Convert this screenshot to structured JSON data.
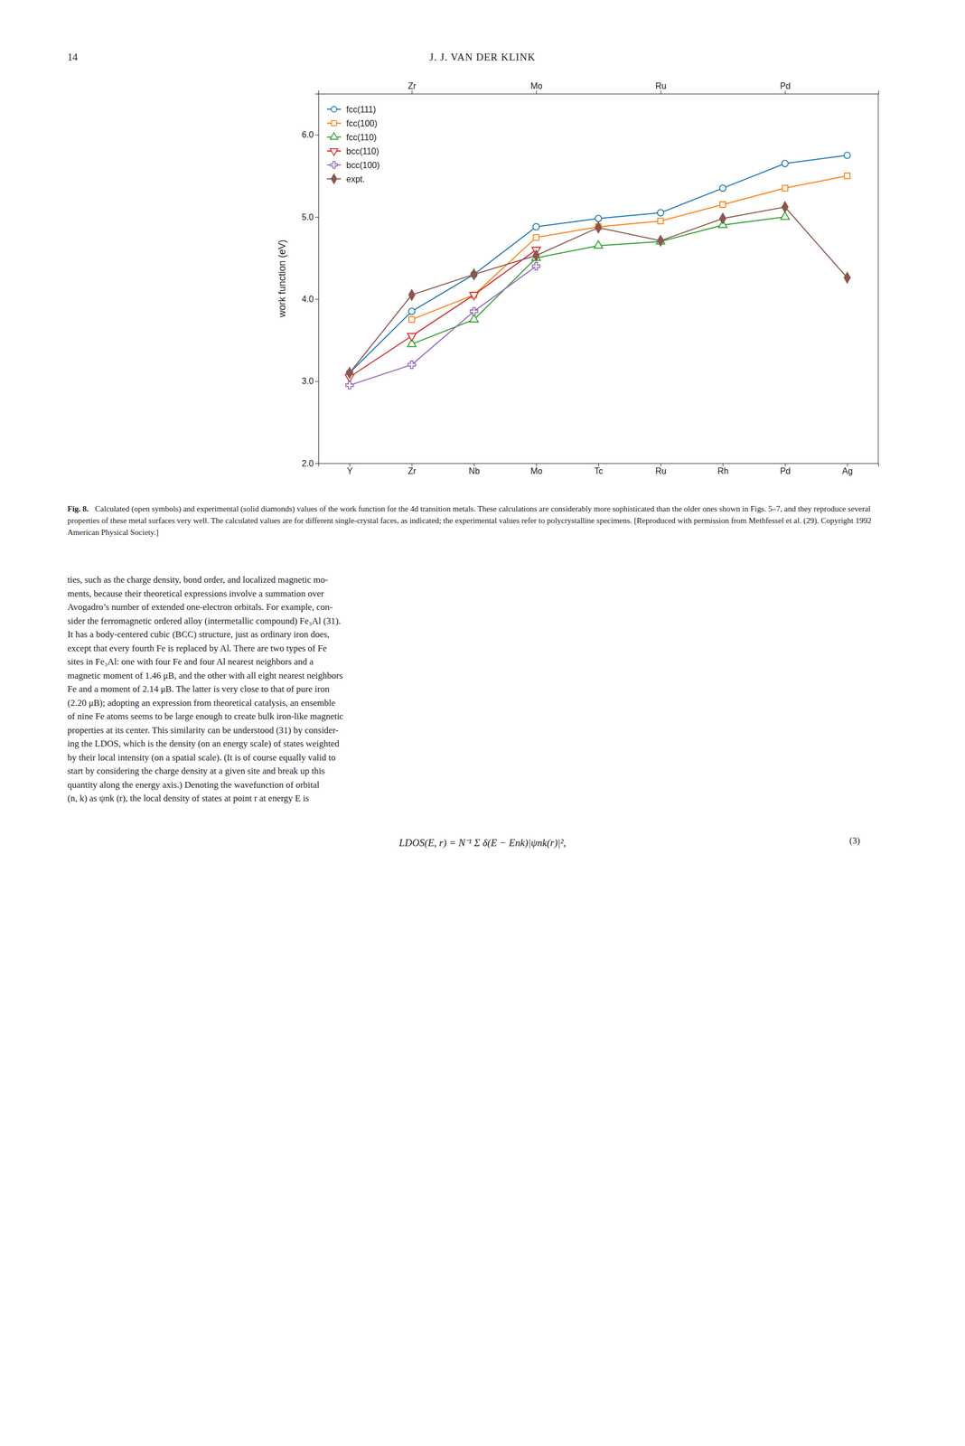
{
  "page_number": "14",
  "header": "J. J. VAN DER KLINK",
  "chart_data": {
    "type": "line",
    "ylabel": "work function (eV)",
    "categories": [
      "Y",
      "Zr",
      "Nb",
      "Mo",
      "Tc",
      "Ru",
      "Rh",
      "Pd",
      "Ag"
    ],
    "x2_categories": [
      null,
      "Zr",
      null,
      "Mo",
      null,
      "Ru",
      null,
      "Pd",
      null
    ],
    "ylim": [
      2.0,
      6.5
    ],
    "yticks": [
      {
        "value": 2.0,
        "label": "2.0"
      },
      {
        "value": 3.0,
        "label": "3.0"
      },
      {
        "value": 4.0,
        "label": "4.0"
      },
      {
        "value": 5.0,
        "label": "5.0"
      },
      {
        "value": 6.0,
        "label": "6.0"
      }
    ],
    "grid": false,
    "legend": "upper left",
    "series": [
      {
        "name": "fcc(111)",
        "marker": "circle-open",
        "values": [
          3.1,
          3.85,
          4.3,
          4.88,
          4.98,
          5.05,
          5.35,
          5.65,
          5.75
        ]
      },
      {
        "name": "fcc(100)",
        "marker": "square-open",
        "values": [
          null,
          3.75,
          4.05,
          4.75,
          4.88,
          4.95,
          5.15,
          5.35,
          5.5
        ]
      },
      {
        "name": "fcc(110)",
        "marker": "triangle-up-open",
        "values": [
          null,
          3.45,
          3.75,
          4.5,
          4.65,
          4.7,
          4.9,
          5.0,
          null
        ]
      },
      {
        "name": "bcc(110)",
        "marker": "triangle-down-open",
        "values": [
          3.05,
          3.55,
          4.05,
          4.6,
          null,
          null,
          null,
          null,
          null
        ]
      },
      {
        "name": "bcc(100)",
        "marker": "plus-open",
        "values": [
          2.95,
          3.2,
          3.85,
          4.4,
          null,
          null,
          null,
          null,
          null
        ]
      },
      {
        "name": "expt.",
        "marker": "diamond",
        "values": [
          3.1,
          4.05,
          4.3,
          4.53,
          4.87,
          4.71,
          4.98,
          5.12,
          4.26
        ]
      }
    ]
  },
  "caption_title": "Fig. 8.",
  "caption_text": "Calculated (open symbols) and experimental (solid diamonds) values of the work function for the 4d transition metals. These calculations are considerably more sophisticated than the older ones shown in Figs. 5–7, and they reproduce several properties of these metal surfaces very well. The calculated values are for different single-crystal faces, as indicated; the experimental values refer to polycrystalline specimens. [Reproduced with permission from Methfessel et al. (29). Copyright 1992 American Physical Society.]",
  "body_text": "ties, such as the charge density, bond order, and localized magnetic mo-\nments, because their theoretical expressions involve a summation over\nAvogadro’s number of extended one-electron orbitals. For example, con-\nsider the ferromagnetic ordered alloy (intermetallic compound) Fe₃Al (31).\nIt has a body-centered cubic (BCC) structure, just as ordinary iron does,\nexcept that every fourth Fe is replaced by Al. There are two types of Fe\nsites in Fe₃Al: one with four Fe and four Al nearest neighbors and a\nmagnetic moment of 1.46 μB, and the other with all eight nearest neighbors\nFe and a moment of 2.14 μB. The latter is very close to that of pure iron\n(2.20 μB); adopting an expression from theoretical catalysis, an ensemble\nof nine Fe atoms seems to be large enough to create bulk iron-like magnetic\nproperties at its center. This similarity can be understood (31) by consider-\ning the LDOS, which is the density (on an energy scale) of states weighted\nby their local intensity (on a spatial scale). (It is of course equally valid to\nstart by considering the charge density at a given site and break up this\nquantity along the energy axis.) Denoting the wavefunction of orbital\n(n, k) as ψnk (r), the local density of states at point r at energy E is",
  "equation": "LDOS(E, r) = N⁻¹ Σ δ(E − Enk)|ψnk(r)|²,",
  "eq_number": "(3)"
}
